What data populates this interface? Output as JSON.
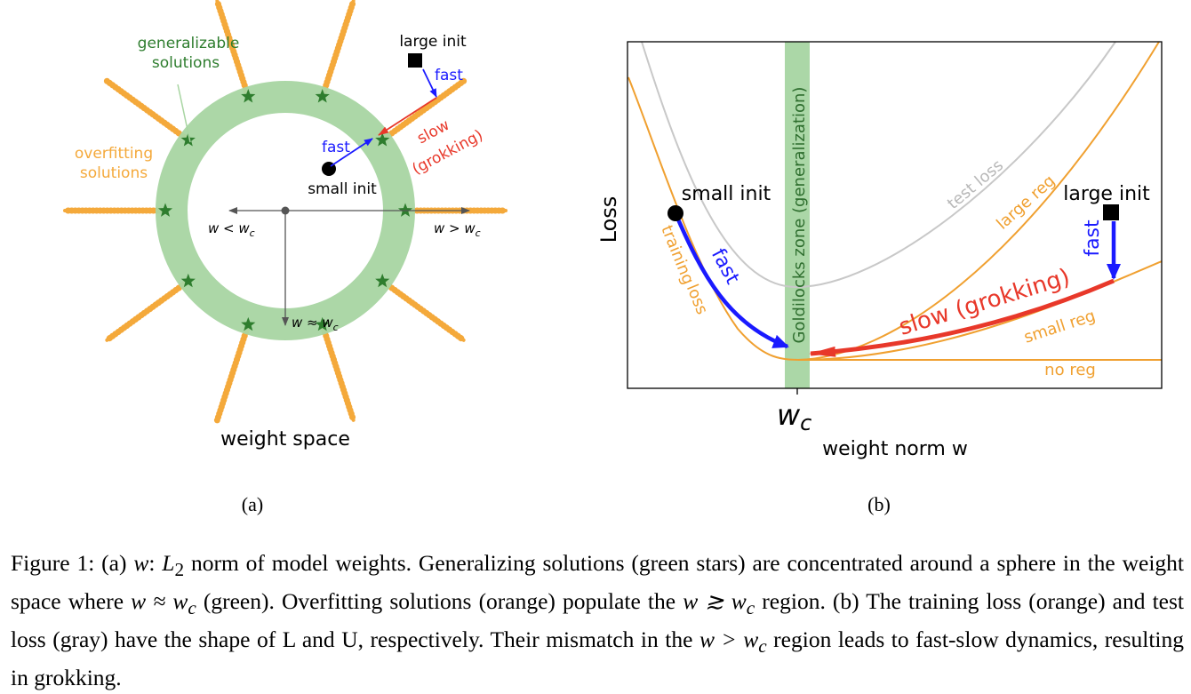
{
  "panel_a": {
    "generalizable_line1": "generalizable",
    "generalizable_line2": "solutions",
    "overfitting_line1": "overfitting",
    "overfitting_line2": "solutions",
    "large_init": "large init",
    "small_init": "small init",
    "fast_top": "fast",
    "fast_mid": "fast",
    "slow_line1": "slow",
    "slow_line2": "(grokking)",
    "w_less": "w < w",
    "w_greater": "w > w",
    "w_approx": "w ≈ w",
    "c": "c",
    "title": "weight space",
    "sublabel": "(a)",
    "colors": {
      "ring": "#a8d5a2",
      "star": "#2e7d2e",
      "overfit": "#f4a93b",
      "fast": "#1a1aff",
      "slow": "#e8382a"
    }
  },
  "panel_b": {
    "ylabel": "Loss",
    "xlabel": "weight norm w",
    "wc": "w",
    "c": "c",
    "small_init": "small init",
    "large_init": "large init",
    "test_loss": "test loss",
    "large_reg": "large reg",
    "small_reg": "small reg",
    "no_reg": "no reg",
    "training_loss_line1": "training",
    "training_loss_line2": "loss",
    "fast_left": "fast",
    "fast_right": "fast",
    "slow": "slow (grokking)",
    "goldilocks": "Goldilocks zone (generalization)",
    "sublabel": "(b)",
    "colors": {
      "train": "#f0a030",
      "test": "#c8c8c8",
      "zone": "#8fc98a",
      "fast": "#1a1aff",
      "slow": "#e8382a"
    }
  },
  "caption": {
    "t1": "Figure 1: (a) ",
    "m1": "w",
    "t2": ": ",
    "m2": "L",
    "m2sub": "2",
    "t3": " norm of model weights. Generalizing solutions (green stars) are concentrated around a sphere in the weight space where ",
    "m3": "w ≈ w",
    "m3sub": "c",
    "t4": " (green). Overfitting solutions (orange) populate the ",
    "m4": "w ≳ w",
    "m4sub": "c",
    "t5": " region.  (b) The training loss (orange) and test loss (gray) have the shape of L and U, respectively. Their mismatch in the ",
    "m5": "w > w",
    "m5sub": "c",
    "t6": " region leads to fast-slow dynamics, resulting in grokking."
  }
}
